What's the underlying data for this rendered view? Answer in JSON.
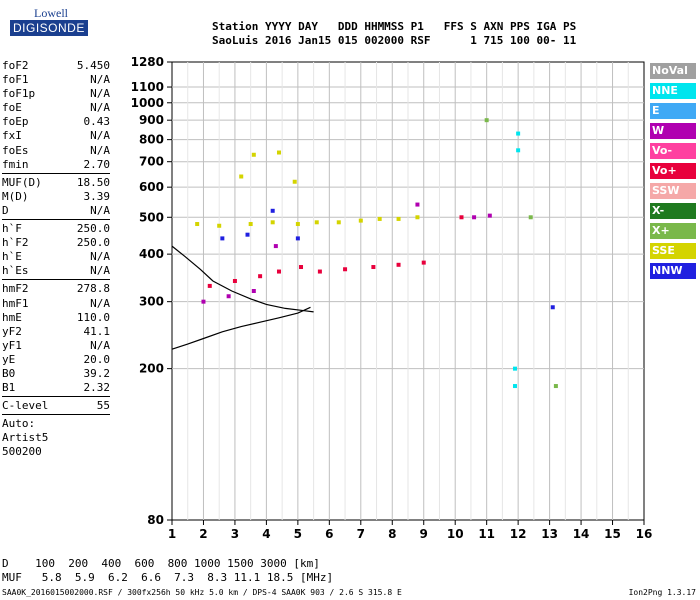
{
  "logo": {
    "line1": "Lowell",
    "line2": "DIGISONDE"
  },
  "header": {
    "line1": "Station YYYY DAY   DDD HHMMSS P1   FFS S AXN PPS IGA PS",
    "line2": "SaoLuis 2016 Jan15 015 002000 RSF      1 715 100 00- 11"
  },
  "params": [
    {
      "label": "foF2",
      "value": "5.450"
    },
    {
      "label": "foF1",
      "value": "N/A"
    },
    {
      "label": "foF1p",
      "value": "N/A"
    },
    {
      "label": "foE",
      "value": "N/A"
    },
    {
      "label": "foEp",
      "value": "0.43"
    },
    {
      "label": "fxI",
      "value": "N/A"
    },
    {
      "label": "foEs",
      "value": "N/A"
    },
    {
      "label": "fmin",
      "value": "2.70"
    },
    {
      "sep": true
    },
    {
      "label": "MUF(D)",
      "value": "18.50"
    },
    {
      "label": "M(D)",
      "value": "3.39"
    },
    {
      "label": "D",
      "value": "N/A"
    },
    {
      "sep": true
    },
    {
      "label": "h`F",
      "value": "250.0"
    },
    {
      "label": "h`F2",
      "value": "250.0"
    },
    {
      "label": "h`E",
      "value": "N/A"
    },
    {
      "label": "h`Es",
      "value": "N/A"
    },
    {
      "sep": true
    },
    {
      "label": "hmF2",
      "value": "278.8"
    },
    {
      "label": "hmF1",
      "value": "N/A"
    },
    {
      "label": "hmE",
      "value": "110.0"
    },
    {
      "label": "yF2",
      "value": "41.1"
    },
    {
      "label": "yF1",
      "value": "N/A"
    },
    {
      "label": "yE",
      "value": "20.0"
    },
    {
      "label": "B0",
      "value": "39.2"
    },
    {
      "label": "B1",
      "value": "2.32"
    },
    {
      "sep": true
    },
    {
      "label": "C-level",
      "value": "55"
    },
    {
      "sep": true
    }
  ],
  "auto": {
    "line1": "Auto:",
    "line2": "Artist5",
    "line3": "500200"
  },
  "legend": [
    {
      "name": "NoVal",
      "color": "#a0a0a0"
    },
    {
      "name": "NNE",
      "color": "#00e5ee"
    },
    {
      "name": "E",
      "color": "#3fa9f5"
    },
    {
      "name": "W",
      "color": "#b000b0"
    },
    {
      "name": "Vo-",
      "color": "#ff40a0"
    },
    {
      "name": "Vo+",
      "color": "#e8003c"
    },
    {
      "name": "SSW",
      "color": "#f5a8a8"
    },
    {
      "name": "X-",
      "color": "#1f7a1f"
    },
    {
      "name": "X+",
      "color": "#7ab84a"
    },
    {
      "name": "SSE",
      "color": "#d4d400"
    },
    {
      "name": "NNW",
      "color": "#2020e0"
    }
  ],
  "bottom": {
    "d_row": "D    100  200  400  600  800 1000 1500 3000 [km]",
    "muf_row": "MUF   5.8  5.9  6.2  6.6  7.3  8.3 11.1 18.5 [MHz]"
  },
  "footer": {
    "left": "SAA0K_2016015002000.RSF / 300fx256h 50 kHz 5.0 km / DPS-4 SAA0K 903 / 2.6 S 315.8 E",
    "right": "Ion2Png 1.3.17"
  },
  "chart_data": {
    "type": "scatter",
    "title": "",
    "xlabel": "",
    "ylabel": "",
    "xlim": [
      1,
      16
    ],
    "ylim": [
      80,
      1280
    ],
    "y_scale": "log",
    "x_ticks": [
      1,
      2,
      3,
      4,
      5,
      6,
      7,
      8,
      9,
      10,
      11,
      12,
      13,
      14,
      15,
      16
    ],
    "y_ticks": [
      80,
      200,
      300,
      400,
      500,
      600,
      700,
      800,
      900,
      1000,
      1100,
      1280
    ],
    "grid": true,
    "series": [
      {
        "name": "SSE",
        "color": "#d4d400",
        "points": [
          [
            1.8,
            480
          ],
          [
            2.5,
            475
          ],
          [
            3.5,
            480
          ],
          [
            4.2,
            485
          ],
          [
            5.0,
            480
          ],
          [
            5.6,
            485
          ],
          [
            6.3,
            485
          ],
          [
            7.0,
            490
          ],
          [
            7.6,
            495
          ],
          [
            8.2,
            495
          ],
          [
            8.8,
            500
          ],
          [
            3.6,
            730
          ],
          [
            4.4,
            740
          ],
          [
            3.2,
            640
          ],
          [
            4.9,
            620
          ]
        ]
      },
      {
        "name": "Vo+",
        "color": "#e8003c",
        "points": [
          [
            2.2,
            330
          ],
          [
            3.0,
            340
          ],
          [
            3.8,
            350
          ],
          [
            4.4,
            360
          ],
          [
            5.1,
            370
          ],
          [
            5.7,
            360
          ],
          [
            6.5,
            365
          ],
          [
            7.4,
            370
          ],
          [
            8.2,
            375
          ],
          [
            9.0,
            380
          ],
          [
            10.2,
            500
          ]
        ]
      },
      {
        "name": "W",
        "color": "#b000b0",
        "points": [
          [
            2.0,
            300
          ],
          [
            2.8,
            310
          ],
          [
            3.6,
            320
          ],
          [
            4.3,
            420
          ],
          [
            8.8,
            540
          ],
          [
            10.6,
            500
          ],
          [
            11.1,
            505
          ]
        ]
      },
      {
        "name": "NNW",
        "color": "#2020e0",
        "points": [
          [
            2.6,
            440
          ],
          [
            3.4,
            450
          ],
          [
            4.2,
            520
          ],
          [
            5.0,
            440
          ],
          [
            13.1,
            290
          ]
        ]
      },
      {
        "name": "NNE",
        "color": "#00e5ee",
        "points": [
          [
            12.0,
            830
          ],
          [
            12.0,
            750
          ],
          [
            11.9,
            200
          ],
          [
            11.9,
            180
          ]
        ]
      },
      {
        "name": "X+",
        "color": "#7ab84a",
        "points": [
          [
            11.0,
            900
          ],
          [
            12.4,
            500
          ],
          [
            13.2,
            180
          ]
        ]
      }
    ],
    "trace": {
      "x": [
        1.0,
        1.5,
        2.0,
        2.6,
        3.2,
        3.8,
        4.4,
        5.0,
        5.4
      ],
      "y": [
        225,
        232,
        240,
        250,
        258,
        265,
        272,
        280,
        290
      ]
    },
    "trace2": {
      "x": [
        1.0,
        1.4,
        1.9,
        2.3,
        2.9,
        3.5,
        4.0,
        4.6,
        5.2,
        5.5
      ],
      "y": [
        420,
        395,
        365,
        340,
        320,
        305,
        295,
        288,
        284,
        282
      ]
    }
  }
}
